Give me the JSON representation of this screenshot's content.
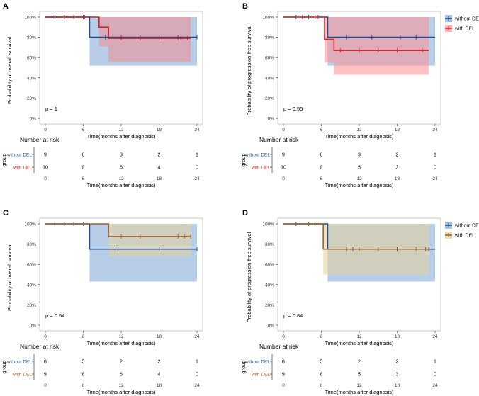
{
  "figure": {
    "x_axis_title": "Time(months after diagnosis)",
    "risk_table_title": "Number at risk",
    "risk_table_ylabel": "group"
  },
  "chart_data": [
    {
      "panel": "A",
      "type": "line",
      "subtype": "kaplan-meier",
      "ylabel": "Probability of overall survival",
      "xlabel": "Time(months after diagnosis)",
      "xlim": [
        0,
        24
      ],
      "ylim": [
        0,
        1
      ],
      "xticks": [
        "0",
        "6",
        "12",
        "18",
        "24"
      ],
      "yticks": [
        "0%",
        "20%",
        "40%",
        "60%",
        "80%",
        "100%"
      ],
      "p_value": "p = 1",
      "legend": [],
      "series": [
        {
          "name": "without DEL",
          "color": "#1f4e8c",
          "ci_color": "#7ea6d6",
          "steps": [
            [
              0,
              1
            ],
            [
              7,
              0.8
            ],
            [
              24,
              0.8
            ]
          ],
          "ci": [
            [
              0,
              1,
              1
            ],
            [
              7,
              0.52,
              1
            ],
            [
              24,
              0.52,
              1
            ]
          ],
          "censor": [
            [
              1.5,
              1
            ],
            [
              3,
              1
            ],
            [
              4.5,
              1
            ],
            [
              6.2,
              1
            ],
            [
              9.5,
              0.8
            ],
            [
              12,
              0.8
            ],
            [
              15,
              0.8
            ],
            [
              18,
              0.8
            ],
            [
              21,
              0.8
            ],
            [
              24,
              0.8
            ]
          ]
        },
        {
          "name": "with DEL",
          "color": "#d11f24",
          "ci_color": "#f28d8f",
          "steps": [
            [
              0,
              1
            ],
            [
              8.5,
              0.9
            ],
            [
              10,
              0.79
            ],
            [
              23,
              0.79
            ]
          ],
          "ci": [
            [
              0,
              1,
              1
            ],
            [
              8.5,
              0.71,
              1
            ],
            [
              10,
              0.56,
              1
            ],
            [
              23,
              0.56,
              1
            ]
          ],
          "censor": [
            [
              3,
              1
            ],
            [
              6,
              1
            ],
            [
              12,
              0.79
            ],
            [
              15,
              0.79
            ],
            [
              18,
              0.79
            ],
            [
              21.5,
              0.79
            ],
            [
              22.5,
              0.79
            ]
          ]
        }
      ],
      "risk_table": {
        "times": [
          "0",
          "6",
          "12",
          "18",
          "24"
        ],
        "rows": [
          {
            "label": "without DEL",
            "color": "#1f4e8c",
            "values": [
              "9",
              "6",
              "3",
              "2",
              "1"
            ]
          },
          {
            "label": "with DEL",
            "color": "#d11f24",
            "values": [
              "10",
              "9",
              "6",
              "4",
              "0"
            ]
          }
        ]
      }
    },
    {
      "panel": "B",
      "type": "line",
      "subtype": "kaplan-meier",
      "ylabel": "Probability of progression-free survival",
      "xlabel": "Time(months after diagnosis)",
      "xlim": [
        0,
        24
      ],
      "ylim": [
        0,
        1
      ],
      "xticks": [
        "0",
        "6",
        "12",
        "18",
        "24"
      ],
      "yticks": [
        "0%",
        "20%",
        "40%",
        "60%",
        "80%",
        "100%"
      ],
      "p_value": "p = 0.55",
      "legend": [
        "without DEL",
        "with DEL"
      ],
      "series": [
        {
          "name": "without DEL",
          "color": "#1f4e8c",
          "ci_color": "#7ea6d6",
          "steps": [
            [
              0,
              1
            ],
            [
              7,
              0.8
            ],
            [
              24,
              0.8
            ]
          ],
          "ci": [
            [
              0,
              1,
              1
            ],
            [
              7,
              0.52,
              1
            ],
            [
              24,
              0.52,
              1
            ]
          ],
          "censor": [
            [
              2,
              1
            ],
            [
              4,
              1
            ],
            [
              5.5,
              1
            ],
            [
              10,
              0.8
            ],
            [
              14,
              0.8
            ],
            [
              18.5,
              0.8
            ],
            [
              21,
              0.8
            ]
          ]
        },
        {
          "name": "with DEL",
          "color": "#e8262c",
          "ci_color": "#ff8f92",
          "steps": [
            [
              0,
              1
            ],
            [
              6.5,
              0.78
            ],
            [
              8,
              0.67
            ],
            [
              23,
              0.67
            ]
          ],
          "ci": [
            [
              0,
              1,
              1
            ],
            [
              6.5,
              0.55,
              1
            ],
            [
              8,
              0.43,
              1
            ],
            [
              23,
              0.43,
              1
            ]
          ],
          "censor": [
            [
              3,
              1
            ],
            [
              5,
              1
            ],
            [
              9,
              0.67
            ],
            [
              12,
              0.67
            ],
            [
              15,
              0.67
            ],
            [
              18,
              0.67
            ],
            [
              22,
              0.67
            ]
          ]
        }
      ],
      "risk_table": {
        "times": [
          "0",
          "6",
          "12",
          "18",
          "24"
        ],
        "rows": [
          {
            "label": "without DEL",
            "color": "#1f4e8c",
            "values": [
              "9",
              "6",
              "3",
              "2",
              "1"
            ]
          },
          {
            "label": "with DEL",
            "color": "#e8262c",
            "values": [
              "10",
              "9",
              "5",
              "3",
              "0"
            ]
          }
        ]
      }
    },
    {
      "panel": "C",
      "type": "line",
      "subtype": "kaplan-meier",
      "ylabel": "Probability of overall survival",
      "xlabel": "Time(months after diagnosis)",
      "xlim": [
        0,
        24
      ],
      "ylim": [
        0,
        1
      ],
      "xticks": [
        "0",
        "6",
        "12",
        "18",
        "24"
      ],
      "yticks": [
        "0%",
        "20%",
        "40%",
        "60%",
        "80%",
        "100%"
      ],
      "p_value": "p = 0.54",
      "legend": [],
      "series": [
        {
          "name": "without DEL",
          "color": "#1f4e8c",
          "ci_color": "#7ea6d6",
          "steps": [
            [
              0,
              1
            ],
            [
              7,
              0.75
            ],
            [
              24,
              0.75
            ]
          ],
          "ci": [
            [
              0,
              1,
              1
            ],
            [
              7,
              0.43,
              1
            ],
            [
              24,
              0.43,
              1
            ]
          ],
          "censor": [
            [
              1.5,
              1
            ],
            [
              3,
              1
            ],
            [
              4.5,
              1
            ],
            [
              11.5,
              0.75
            ],
            [
              18,
              0.75
            ],
            [
              24,
              0.75
            ]
          ]
        },
        {
          "name": "with DEL",
          "color": "#a0642a",
          "ci_color": "#e6cf9a",
          "steps": [
            [
              0,
              1
            ],
            [
              10,
              0.875
            ],
            [
              23,
              0.875
            ]
          ],
          "ci": [
            [
              0,
              1,
              1
            ],
            [
              10,
              0.68,
              1
            ],
            [
              23,
              0.68,
              1
            ]
          ],
          "censor": [
            [
              3,
              1
            ],
            [
              6,
              1
            ],
            [
              12,
              0.875
            ],
            [
              15,
              0.875
            ],
            [
              21,
              0.875
            ],
            [
              22,
              0.875
            ],
            [
              23,
              0.875
            ]
          ]
        }
      ],
      "risk_table": {
        "times": [
          "0",
          "6",
          "12",
          "18",
          "24"
        ],
        "rows": [
          {
            "label": "without DEL",
            "color": "#1f4e8c",
            "values": [
              "8",
              "5",
              "2",
              "2",
              "1"
            ]
          },
          {
            "label": "with DEL",
            "color": "#a0642a",
            "values": [
              "9",
              "8",
              "6",
              "4",
              "0"
            ]
          }
        ]
      }
    },
    {
      "panel": "D",
      "type": "line",
      "subtype": "kaplan-meier",
      "ylabel": "Probability of progression-free survival",
      "xlabel": "Time(months after diagnosis)",
      "xlim": [
        0,
        24
      ],
      "ylim": [
        0,
        1
      ],
      "xticks": [
        "0",
        "6",
        "12",
        "18",
        "24"
      ],
      "yticks": [
        "0%",
        "20%",
        "40%",
        "60%",
        "80%",
        "100%"
      ],
      "p_value": "p = 0.84",
      "legend": [
        "without DEL",
        "with DEL"
      ],
      "series": [
        {
          "name": "without DEL",
          "color": "#1f4e8c",
          "ci_color": "#7ea6d6",
          "steps": [
            [
              0,
              1
            ],
            [
              7,
              0.75
            ],
            [
              24,
              0.75
            ]
          ],
          "ci": [
            [
              0,
              1,
              1
            ],
            [
              7,
              0.43,
              1
            ],
            [
              24,
              0.43,
              1
            ]
          ],
          "censor": [
            [
              2,
              1
            ],
            [
              4,
              1
            ],
            [
              5,
              1
            ],
            [
              11,
              0.75
            ],
            [
              18,
              0.75
            ],
            [
              23,
              0.75
            ]
          ]
        },
        {
          "name": "with DEL",
          "color": "#a0642a",
          "ci_color": "#e6cf9a",
          "steps": [
            [
              0,
              1
            ],
            [
              6.3,
              0.75
            ],
            [
              23,
              0.75
            ]
          ],
          "ci": [
            [
              0,
              1,
              1
            ],
            [
              6.3,
              0.5,
              1
            ],
            [
              23,
              0.5,
              1
            ]
          ],
          "censor": [
            [
              4,
              1
            ],
            [
              5,
              1
            ],
            [
              10,
              0.75
            ],
            [
              12,
              0.75
            ],
            [
              15,
              0.75
            ],
            [
              21,
              0.75
            ],
            [
              22.5,
              0.75
            ]
          ]
        }
      ],
      "risk_table": {
        "times": [
          "0",
          "6",
          "12",
          "18",
          "24"
        ],
        "rows": [
          {
            "label": "without DEL",
            "color": "#1f4e8c",
            "values": [
              "8",
              "5",
              "2",
              "2",
              "1"
            ]
          },
          {
            "label": "with DEL",
            "color": "#a0642a",
            "values": [
              "9",
              "8",
              "5",
              "3",
              "0"
            ]
          }
        ]
      }
    }
  ]
}
